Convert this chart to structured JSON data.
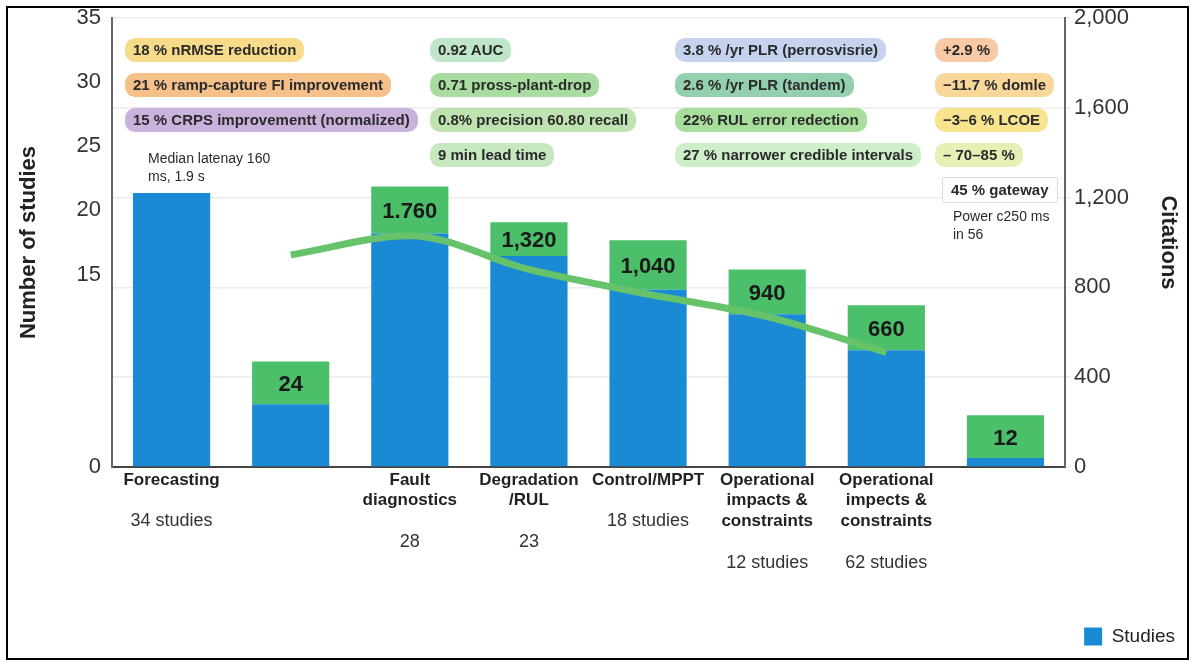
{
  "chart_data": {
    "type": "bar",
    "stacked": true,
    "categories": [
      "Forecasting",
      null,
      "Fault diagnostics",
      "Degradation /RUL",
      "Control/MPPT",
      "Operational impacts & constraints",
      "Operational impects & constraints",
      null
    ],
    "series": [
      {
        "name": "Studies",
        "color": "#1a8ad4",
        "axis": "y2",
        "values": [
          1220,
          280,
          1040,
          940,
          790,
          680,
          520,
          40
        ]
      },
      {
        "color": "#4cbf6b",
        "axis": "y2",
        "values": [
          null,
          190,
          210,
          150,
          220,
          200,
          200,
          190
        ]
      },
      {
        "type": "line",
        "color": "#66c36a",
        "axis": "y2",
        "values": [
          null,
          945,
          1030,
          880,
          770,
          670,
          510,
          null
        ]
      }
    ],
    "ylabel": "Number of studies",
    "y2label": "Citations",
    "ylim": [
      0,
      35
    ],
    "yticks": [
      0,
      15,
      20,
      25,
      30,
      35
    ],
    "y2lim": [
      0,
      2000
    ],
    "y2ticks": [
      {
        "value": 0,
        "label": "0"
      },
      {
        "value": 400,
        "label": "400"
      },
      {
        "value": 800,
        "label": "800"
      },
      {
        "value": 1200,
        "label": "1,200"
      },
      {
        "value": 1600,
        "label": "1,600"
      },
      {
        "value": 2000,
        "label": "2,000"
      }
    ],
    "grid": "y",
    "legend": "bottom right",
    "annotations": [
      "18 % nRMSE reduction",
      "21 % ramp-capture FI improvement",
      "15 % CRPS improvementt (normalized)",
      "Median latenay 160 ms, 1.9 s",
      "0.92 AUC",
      "0.71  pross-plant-drop",
      "0.8% precision 60.80 recall",
      "9 min lead time",
      "3.8 % /yr PLR (perrosvisrie)",
      "2.6 % /yr PLR (tandem)",
      "22% RUL error redection",
      "27 % narrower credible intervals",
      "+2.9 %",
      "−11.7 % domle",
      "−3–6 % LCOE",
      "– 70–85 %",
      "45 % gateway",
      "Power  c250 ms in 56",
      "24",
      "1.760",
      "1,320",
      "1,040",
      "940",
      "660",
      "12",
      "34 studies",
      "28",
      "23",
      "18 studies",
      "12 studies",
      "62 studies"
    ]
  }
}
